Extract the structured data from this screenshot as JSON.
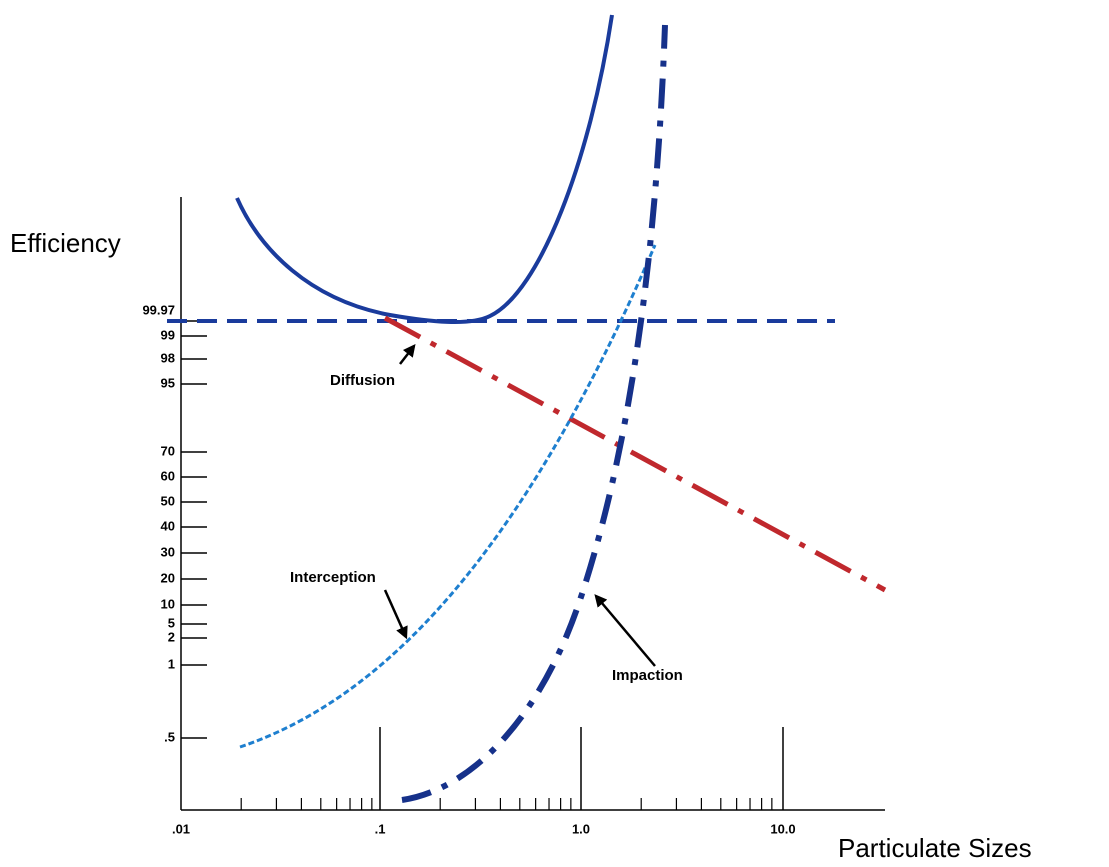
{
  "axis_title_y": "Efficiency",
  "axis_title_x": "Particulate Sizes",
  "y_tick_labels": [
    "99.97",
    "99",
    "98",
    "95",
    "70",
    "60",
    "50",
    "40",
    "30",
    "20",
    "10",
    "5",
    "2",
    "1",
    ".5"
  ],
  "x_tick_labels": [
    ".01",
    ".1",
    "1.0",
    "10.0"
  ],
  "annotations": [
    "Diffusion",
    "Interception",
    "Impaction"
  ]
}
